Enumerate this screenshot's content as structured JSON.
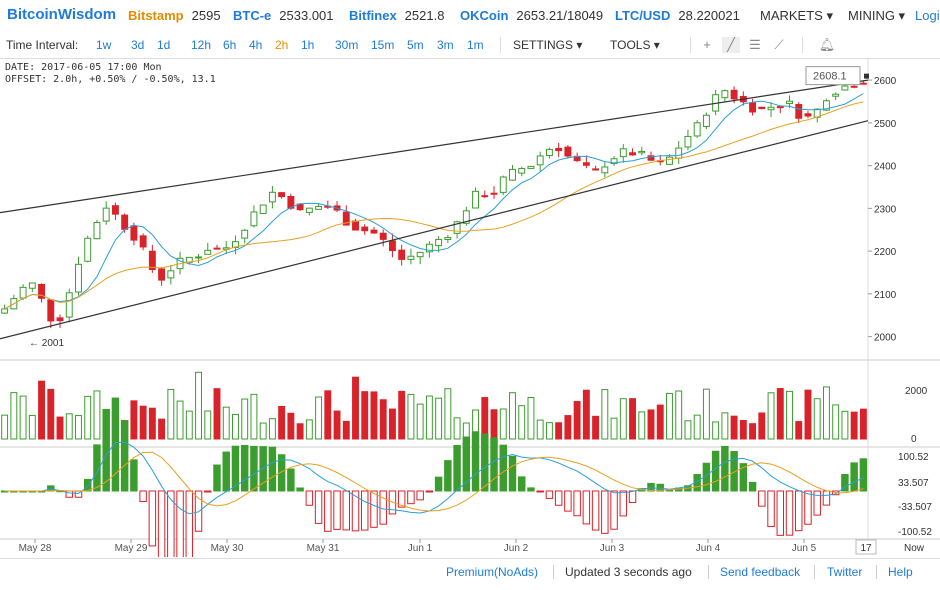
{
  "header": {
    "logo": "BitcoinWisdom",
    "tickers": [
      {
        "exchange": "Bitstamp",
        "price": "2595",
        "color": "orange"
      },
      {
        "exchange": "BTC-e",
        "price": "2533.001",
        "color": "blue"
      },
      {
        "exchange": "Bitfinex",
        "price": "2521.8",
        "color": "blue"
      },
      {
        "exchange": "OKCoin",
        "price": "2653.21/18049",
        "color": "blue"
      },
      {
        "exchange": "LTC/USD",
        "price": "28.220021",
        "color": "blue"
      }
    ],
    "menus": {
      "markets": "MARKETS ▾",
      "mining": "MINING ▾",
      "login": "Login"
    }
  },
  "toolbar": {
    "label": "Time Interval:",
    "intervals": [
      "1w",
      "3d",
      "1d",
      "12h",
      "6h",
      "4h",
      "2h",
      "1h",
      "30m",
      "15m",
      "5m",
      "3m",
      "1m"
    ],
    "active": "2h",
    "settings": "SETTINGS ▾",
    "tools": "TOOLS ▾",
    "icons": [
      "plus-icon",
      "line-icon",
      "hlines-icon",
      "fib-icon",
      "bell-icon"
    ]
  },
  "info": {
    "line1": "DATE: 2017-06-05 17:00 Mon",
    "line2": "OFFSET: 2.0h, +0.50% / -0.50%, 13.1"
  },
  "chart_data": {
    "type": "candlestick",
    "title": "",
    "price_axis": {
      "range": [
        1950,
        2640
      ],
      "ticks": [
        "2600",
        "2500",
        "2400",
        "2300",
        "2200",
        "2100",
        "2000"
      ]
    },
    "current_price": "2608.1",
    "low_marker": "← 2001",
    "date_labels": [
      "May 28",
      "May 29",
      "May 30",
      "May 31",
      "Jun 1",
      "Jun 2",
      "Jun 3",
      "Jun 4",
      "Jun 5"
    ],
    "right_date_label": "17",
    "now_label": "Now",
    "volume_axis": {
      "ticks": [
        "2000",
        "0"
      ]
    },
    "macd_axis": {
      "ticks": [
        "100.52",
        "33.507",
        "-33.507",
        "-100.52"
      ]
    },
    "trendlines": [
      {
        "from": [
          "start",
          2290
        ],
        "to": [
          "end",
          2600
        ]
      },
      {
        "from": [
          "start",
          1995
        ],
        "to": [
          "end",
          2505
        ]
      }
    ],
    "price_path": [
      2065,
      2100,
      2130,
      2080,
      2020,
      2100,
      2200,
      2260,
      2310,
      2270,
      2240,
      2190,
      2130,
      2160,
      2180,
      2190,
      2210,
      2200,
      2230,
      2270,
      2310,
      2340,
      2320,
      2290,
      2300,
      2310,
      2290,
      2260,
      2250,
      2240,
      2210,
      2180,
      2190,
      2210,
      2230,
      2250,
      2300,
      2340,
      2330,
      2370,
      2390,
      2400,
      2430,
      2450,
      2420,
      2400,
      2380,
      2410,
      2430,
      2430,
      2420,
      2400,
      2420,
      2460,
      2490,
      2540,
      2580,
      2560,
      2540,
      2530,
      2540,
      2550,
      2520,
      2510,
      2560,
      2580,
      2590,
      2600
    ]
  },
  "footer": {
    "premium": "Premium(NoAds)",
    "updated": "Updated 3 seconds ago",
    "feedback": "Send feedback",
    "twitter": "Twitter",
    "help": "Help"
  }
}
